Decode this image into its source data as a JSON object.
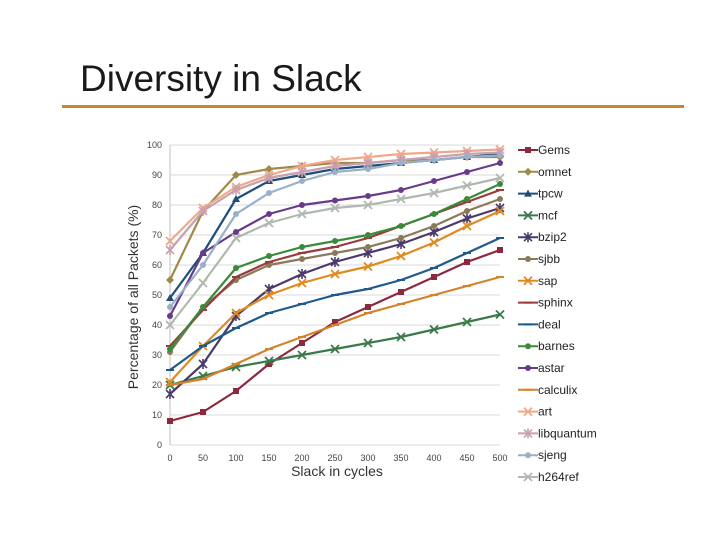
{
  "slide": {
    "title": "Diversity in Slack",
    "accent_color": "#c8882a"
  },
  "chart_data": {
    "type": "line",
    "title": "",
    "xlabel": "Slack in cycles",
    "ylabel": "Percentage of all Packets (%)",
    "x": [
      0,
      50,
      100,
      150,
      200,
      250,
      300,
      350,
      400,
      450,
      500
    ],
    "xlim": [
      0,
      500
    ],
    "ylim": [
      0,
      100
    ],
    "xticks": [
      "0",
      "50",
      "100",
      "150",
      "200",
      "250",
      "300",
      "350",
      "400",
      "450",
      "500"
    ],
    "yticks": [
      "0",
      "10",
      "20",
      "30",
      "40",
      "50",
      "60",
      "70",
      "80",
      "90",
      "100"
    ],
    "grid": true,
    "legend_position": "right",
    "series": [
      {
        "name": "Gems",
        "color": "#8b2a3f",
        "marker": "square",
        "values": [
          8,
          11,
          18,
          27,
          34,
          41,
          46,
          51,
          56,
          61,
          65
        ]
      },
      {
        "name": "omnet",
        "color": "#a08a4a",
        "marker": "diamond",
        "values": [
          55,
          78,
          90,
          92,
          93,
          94,
          94,
          95,
          95,
          96,
          96
        ]
      },
      {
        "name": "tpcw",
        "color": "#1f4e79",
        "marker": "triangle",
        "values": [
          49,
          64,
          82,
          88,
          90,
          92,
          93,
          94,
          95,
          96,
          97
        ]
      },
      {
        "name": "mcf",
        "color": "#3a7a4a",
        "marker": "x",
        "values": [
          20,
          23,
          26,
          28,
          30,
          32,
          34,
          36,
          38.5,
          41,
          43.5
        ]
      },
      {
        "name": "bzip2",
        "color": "#4a3a6a",
        "marker": "star",
        "values": [
          17,
          27,
          43,
          52,
          57,
          61,
          64,
          67,
          71,
          75.5,
          79
        ]
      },
      {
        "name": "sjbb",
        "color": "#8a7a5a",
        "marker": "circle",
        "values": [
          31,
          46,
          55,
          60,
          62,
          64,
          66,
          69,
          73,
          78,
          82
        ]
      },
      {
        "name": "sap",
        "color": "#e08a20",
        "marker": "x",
        "values": [
          21,
          33,
          44,
          50,
          54,
          57,
          59.5,
          63,
          67.5,
          73,
          78
        ]
      },
      {
        "name": "sphinx",
        "color": "#9a3a3a",
        "marker": "dash",
        "values": [
          33,
          45,
          56,
          61,
          64,
          66,
          69,
          73,
          77,
          81,
          85
        ]
      },
      {
        "name": "deal",
        "color": "#1f5a8a",
        "marker": "dash",
        "values": [
          25,
          33,
          39,
          44,
          47,
          50,
          52,
          55,
          59,
          64,
          69
        ]
      },
      {
        "name": "barnes",
        "color": "#3a8a3a",
        "marker": "circle",
        "values": [
          32,
          46,
          59,
          63,
          66,
          68,
          70,
          73,
          77,
          82,
          87
        ]
      },
      {
        "name": "astar",
        "color": "#6a3a8a",
        "marker": "circle",
        "values": [
          43,
          64,
          71,
          77,
          80,
          81.5,
          83,
          85,
          88,
          91,
          94
        ]
      },
      {
        "name": "calculix",
        "color": "#d4832a",
        "marker": "dash",
        "values": [
          20,
          22,
          27,
          32,
          36,
          40,
          44,
          47,
          50,
          53,
          56
        ]
      },
      {
        "name": "art",
        "color": "#f0a88a",
        "marker": "x",
        "values": [
          68,
          79,
          86,
          90,
          93,
          95,
          96,
          97,
          97.5,
          98,
          98.5
        ]
      },
      {
        "name": "libquantum",
        "color": "#c8a0b0",
        "marker": "star",
        "values": [
          65,
          78,
          85,
          89,
          91,
          93,
          94,
          95,
          96,
          97,
          97.5
        ]
      },
      {
        "name": "sjeng",
        "color": "#9ab0c8",
        "marker": "circle",
        "values": [
          46,
          60,
          77,
          84,
          88,
          91,
          92,
          94,
          95,
          96,
          96.5
        ]
      },
      {
        "name": "h264ref",
        "color": "#b0b8b0",
        "marker": "x",
        "values": [
          40,
          54,
          69,
          74,
          77,
          79,
          80,
          82,
          84,
          86.5,
          89
        ]
      }
    ]
  }
}
